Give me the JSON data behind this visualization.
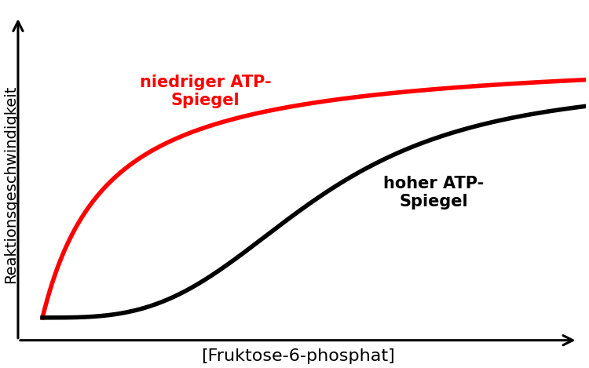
{
  "title": "",
  "xlabel": "[Fruktose-6-phosphat]",
  "ylabel": "Reaktionsgeschwindigkeit",
  "xlabel_fontsize": 16,
  "ylabel_fontsize": 14,
  "label_low_atp": "niedriger ATP-\nSpiegel",
  "label_high_atp": "hoher ATP-\nSpiegel",
  "label_low_color": "#ff0000",
  "label_high_color": "#000000",
  "label_fontsize": 15,
  "curve_low_color": "#ff0000",
  "curve_high_color": "#000000",
  "curve_linewidth": 4,
  "background_color": "#ffffff",
  "vmax_low": 1.0,
  "km_low": 1.2,
  "hill_low": 1.0,
  "vmax_high": 0.88,
  "km_high": 5.0,
  "hill_high": 3.2,
  "x_max": 10.0
}
